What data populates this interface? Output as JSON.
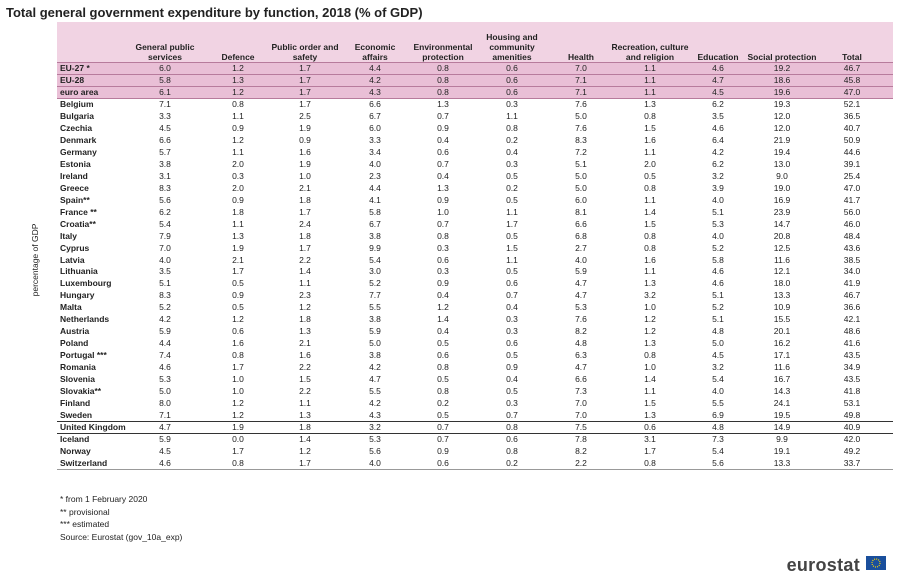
{
  "title": "Total general government expenditure by function, 2018 (% of GDP)",
  "y_label": "percentage of GDP",
  "headers": [
    "General public services",
    "Defence",
    "Public order and safety",
    "Economic affairs",
    "Environmental protection",
    "Housing and community amenities",
    "Health",
    "Recreation, culture and religion",
    "Education",
    "Social protection",
    "Total"
  ],
  "rows": [
    {
      "label": "EU-27 *",
      "values": [
        "6.0",
        "1.2",
        "1.7",
        "4.4",
        "0.8",
        "0.6",
        "7.0",
        "1.1",
        "4.6",
        "19.2",
        "46.7"
      ]
    },
    {
      "label": "EU-28",
      "values": [
        "5.8",
        "1.3",
        "1.7",
        "4.2",
        "0.8",
        "0.6",
        "7.1",
        "1.1",
        "4.7",
        "18.6",
        "45.8"
      ]
    },
    {
      "label": "euro area",
      "values": [
        "6.1",
        "1.2",
        "1.7",
        "4.3",
        "0.8",
        "0.6",
        "7.1",
        "1.1",
        "4.5",
        "19.6",
        "47.0"
      ]
    },
    {
      "label": "Belgium",
      "values": [
        "7.1",
        "0.8",
        "1.7",
        "6.6",
        "1.3",
        "0.3",
        "7.6",
        "1.3",
        "6.2",
        "19.3",
        "52.1"
      ]
    },
    {
      "label": "Bulgaria",
      "values": [
        "3.3",
        "1.1",
        "2.5",
        "6.7",
        "0.7",
        "1.1",
        "5.0",
        "0.8",
        "3.5",
        "12.0",
        "36.5"
      ]
    },
    {
      "label": "Czechia",
      "values": [
        "4.5",
        "0.9",
        "1.9",
        "6.0",
        "0.9",
        "0.8",
        "7.6",
        "1.5",
        "4.6",
        "12.0",
        "40.7"
      ]
    },
    {
      "label": "Denmark",
      "values": [
        "6.6",
        "1.2",
        "0.9",
        "3.3",
        "0.4",
        "0.2",
        "8.3",
        "1.6",
        "6.4",
        "21.9",
        "50.9"
      ]
    },
    {
      "label": "Germany",
      "values": [
        "5.7",
        "1.1",
        "1.6",
        "3.4",
        "0.6",
        "0.4",
        "7.2",
        "1.1",
        "4.2",
        "19.4",
        "44.6"
      ]
    },
    {
      "label": "Estonia",
      "values": [
        "3.8",
        "2.0",
        "1.9",
        "4.0",
        "0.7",
        "0.3",
        "5.1",
        "2.0",
        "6.2",
        "13.0",
        "39.1"
      ]
    },
    {
      "label": "Ireland",
      "values": [
        "3.1",
        "0.3",
        "1.0",
        "2.3",
        "0.4",
        "0.5",
        "5.0",
        "0.5",
        "3.2",
        "9.0",
        "25.4"
      ]
    },
    {
      "label": "Greece",
      "values": [
        "8.3",
        "2.0",
        "2.1",
        "4.4",
        "1.3",
        "0.2",
        "5.0",
        "0.8",
        "3.9",
        "19.0",
        "47.0"
      ]
    },
    {
      "label": "Spain**",
      "values": [
        "5.6",
        "0.9",
        "1.8",
        "4.1",
        "0.9",
        "0.5",
        "6.0",
        "1.1",
        "4.0",
        "16.9",
        "41.7"
      ]
    },
    {
      "label": "France **",
      "values": [
        "6.2",
        "1.8",
        "1.7",
        "5.8",
        "1.0",
        "1.1",
        "8.1",
        "1.4",
        "5.1",
        "23.9",
        "56.0"
      ]
    },
    {
      "label": "Croatia**",
      "values": [
        "5.4",
        "1.1",
        "2.4",
        "6.7",
        "0.7",
        "1.7",
        "6.6",
        "1.5",
        "5.3",
        "14.7",
        "46.0"
      ]
    },
    {
      "label": "Italy",
      "values": [
        "7.9",
        "1.3",
        "1.8",
        "3.8",
        "0.8",
        "0.5",
        "6.8",
        "0.8",
        "4.0",
        "20.8",
        "48.4"
      ]
    },
    {
      "label": "Cyprus",
      "values": [
        "7.0",
        "1.9",
        "1.7",
        "9.9",
        "0.3",
        "1.5",
        "2.7",
        "0.8",
        "5.2",
        "12.5",
        "43.6"
      ]
    },
    {
      "label": "Latvia",
      "values": [
        "4.0",
        "2.1",
        "2.2",
        "5.4",
        "0.6",
        "1.1",
        "4.0",
        "1.6",
        "5.8",
        "11.6",
        "38.5"
      ]
    },
    {
      "label": "Lithuania",
      "values": [
        "3.5",
        "1.7",
        "1.4",
        "3.0",
        "0.3",
        "0.5",
        "5.9",
        "1.1",
        "4.6",
        "12.1",
        "34.0"
      ]
    },
    {
      "label": "Luxembourg",
      "values": [
        "5.1",
        "0.5",
        "1.1",
        "5.2",
        "0.9",
        "0.6",
        "4.7",
        "1.3",
        "4.6",
        "18.0",
        "41.9"
      ]
    },
    {
      "label": "Hungary",
      "values": [
        "8.3",
        "0.9",
        "2.3",
        "7.7",
        "0.4",
        "0.7",
        "4.7",
        "3.2",
        "5.1",
        "13.3",
        "46.7"
      ]
    },
    {
      "label": "Malta",
      "values": [
        "5.2",
        "0.5",
        "1.2",
        "5.5",
        "1.2",
        "0.4",
        "5.3",
        "1.0",
        "5.2",
        "10.9",
        "36.6"
      ]
    },
    {
      "label": "Netherlands",
      "values": [
        "4.2",
        "1.2",
        "1.8",
        "3.8",
        "1.4",
        "0.3",
        "7.6",
        "1.2",
        "5.1",
        "15.5",
        "42.1"
      ]
    },
    {
      "label": "Austria",
      "values": [
        "5.9",
        "0.6",
        "1.3",
        "5.9",
        "0.4",
        "0.3",
        "8.2",
        "1.2",
        "4.8",
        "20.1",
        "48.6"
      ]
    },
    {
      "label": "Poland",
      "values": [
        "4.4",
        "1.6",
        "2.1",
        "5.0",
        "0.5",
        "0.6",
        "4.8",
        "1.3",
        "5.0",
        "16.2",
        "41.6"
      ]
    },
    {
      "label": "Portugal ***",
      "values": [
        "7.4",
        "0.8",
        "1.6",
        "3.8",
        "0.6",
        "0.5",
        "6.3",
        "0.8",
        "4.5",
        "17.1",
        "43.5"
      ]
    },
    {
      "label": "Romania",
      "values": [
        "4.6",
        "1.7",
        "2.2",
        "4.2",
        "0.8",
        "0.9",
        "4.7",
        "1.0",
        "3.2",
        "11.6",
        "34.9"
      ]
    },
    {
      "label": "Slovenia",
      "values": [
        "5.3",
        "1.0",
        "1.5",
        "4.7",
        "0.5",
        "0.4",
        "6.6",
        "1.4",
        "5.4",
        "16.7",
        "43.5"
      ]
    },
    {
      "label": "Slovakia**",
      "values": [
        "5.0",
        "1.0",
        "2.2",
        "5.5",
        "0.8",
        "0.5",
        "7.3",
        "1.1",
        "4.0",
        "14.3",
        "41.8"
      ]
    },
    {
      "label": "Finland",
      "values": [
        "8.0",
        "1.2",
        "1.1",
        "4.2",
        "0.2",
        "0.3",
        "7.0",
        "1.5",
        "5.5",
        "24.1",
        "53.1"
      ]
    },
    {
      "label": "Sweden",
      "values": [
        "7.1",
        "1.2",
        "1.3",
        "4.3",
        "0.5",
        "0.7",
        "7.0",
        "1.3",
        "6.9",
        "19.5",
        "49.8"
      ]
    },
    {
      "label": "United Kingdom",
      "values": [
        "4.7",
        "1.9",
        "1.8",
        "3.2",
        "0.7",
        "0.8",
        "7.5",
        "0.6",
        "4.8",
        "14.9",
        "40.9"
      ]
    },
    {
      "label": "Iceland",
      "values": [
        "5.9",
        "0.0",
        "1.4",
        "5.3",
        "0.7",
        "0.6",
        "7.8",
        "3.1",
        "7.3",
        "9.9",
        "42.0"
      ]
    },
    {
      "label": "Norway",
      "values": [
        "4.5",
        "1.7",
        "1.2",
        "5.6",
        "0.9",
        "0.8",
        "8.2",
        "1.7",
        "5.4",
        "19.1",
        "49.2"
      ]
    },
    {
      "label": "Switzerland",
      "values": [
        "4.6",
        "0.8",
        "1.7",
        "4.0",
        "0.6",
        "0.2",
        "2.2",
        "0.8",
        "5.6",
        "13.3",
        "33.7"
      ]
    }
  ],
  "footnotes": [
    "* from 1 February 2020",
    "** provisional",
    "*** estimated",
    "Source: Eurostat (gov_10a_exp)"
  ],
  "logo": "eurostat"
}
